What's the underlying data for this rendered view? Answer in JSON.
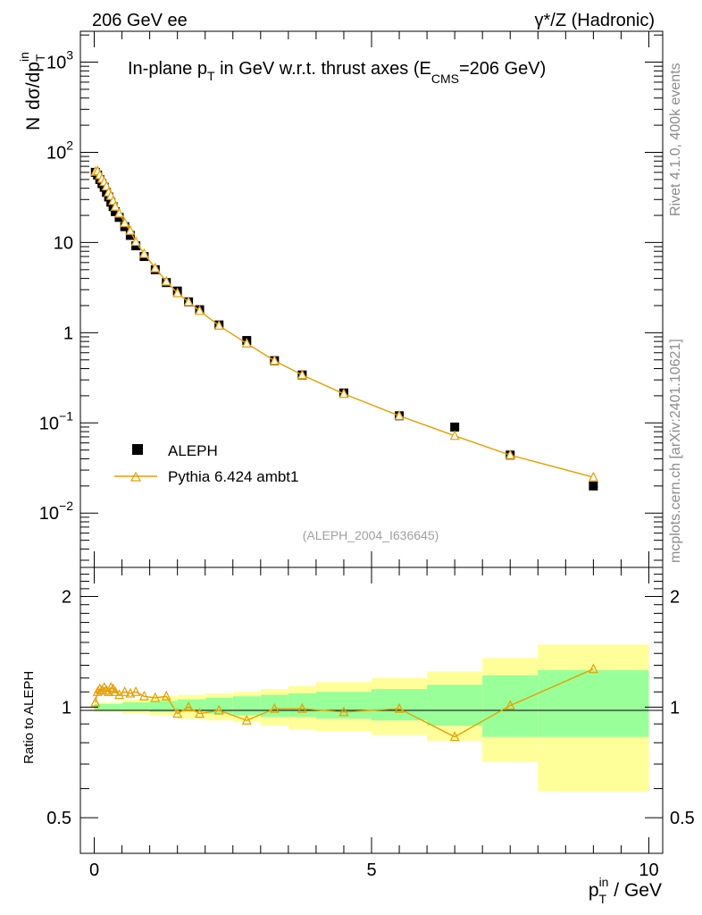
{
  "header": {
    "left": "206 GeV ee",
    "right": "γ*/Z (Hadronic)"
  },
  "side_labels": {
    "rivet": "Rivet 4.1.0,  400k events",
    "mcplots": "mcplots.cern.ch [arXiv:2401.10621]"
  },
  "chart_data": [
    {
      "type": "scatter",
      "panel": "main",
      "title_parts": {
        "pre": "In-plane p",
        "sub1": "T",
        "mid": " in GeV w.r.t. thrust axes (E",
        "sub2": "CMS",
        "post": "=206 GeV)"
      },
      "ylabel": {
        "n": "N",
        "base": "dσ/dp",
        "sub": "T",
        "sup": "in"
      },
      "analysis_id": "(ALEPH_2004_I636645)",
      "yscale": "log",
      "xlim": [
        -0.25,
        10.25
      ],
      "ylim": [
        0.0025,
        2200
      ],
      "y_ticks": [
        {
          "value": 0.01,
          "base": "10",
          "exp": "−2"
        },
        {
          "value": 0.1,
          "base": "10",
          "exp": "−1"
        },
        {
          "value": 1,
          "label": "1"
        },
        {
          "value": 10,
          "label": "10"
        },
        {
          "value": 100,
          "base": "10",
          "exp": "2"
        },
        {
          "value": 1000,
          "base": "10",
          "exp": "3"
        }
      ],
      "x": [
        0.02,
        0.06,
        0.1,
        0.14,
        0.18,
        0.22,
        0.26,
        0.3,
        0.34,
        0.38,
        0.45,
        0.55,
        0.65,
        0.75,
        0.9,
        1.1,
        1.3,
        1.5,
        1.7,
        1.9,
        2.25,
        2.75,
        3.25,
        3.75,
        4.5,
        5.5,
        6.5,
        7.5,
        9.0
      ],
      "series": [
        {
          "name": "ALEPH",
          "marker": "filled-square",
          "color": "#000000",
          "values": [
            60,
            56,
            50,
            45,
            41,
            36,
            32,
            28,
            25,
            22,
            19,
            15,
            12,
            9.2,
            7.0,
            5.0,
            3.6,
            2.9,
            2.2,
            1.8,
            1.22,
            0.82,
            0.49,
            0.34,
            0.215,
            0.12,
            0.09,
            0.044,
            0.02
          ]
        },
        {
          "name": "Pythia 6.424 ambt1",
          "marker": "open-triangle",
          "color": "#e69f00",
          "values": [
            61,
            62,
            56,
            51,
            47,
            42,
            36,
            33,
            29,
            25,
            21,
            16.5,
            13.5,
            10.2,
            7.5,
            5.2,
            3.7,
            2.75,
            2.2,
            1.75,
            1.2,
            0.76,
            0.49,
            0.34,
            0.21,
            0.12,
            0.072,
            0.044,
            0.025
          ]
        }
      ]
    },
    {
      "type": "line",
      "panel": "ratio",
      "ylabel": "Ratio to ALEPH",
      "xlabel": {
        "base": "p",
        "sub": "T",
        "sup": "in",
        "unit": " / GeV"
      },
      "yscale": "log",
      "xlim": [
        -0.25,
        10.25
      ],
      "ylim": [
        0.4,
        2.4
      ],
      "y_ticks": [
        {
          "value": 0.5,
          "label": "0.5"
        },
        {
          "value": 1,
          "label": "1"
        },
        {
          "value": 2,
          "label": "2"
        }
      ],
      "x_ticks": [
        {
          "value": 0,
          "label": "0"
        },
        {
          "value": 5,
          "label": "5"
        },
        {
          "value": 10,
          "label": "10"
        }
      ],
      "band_edges": [
        0,
        0.5,
        1.0,
        1.5,
        2.0,
        2.5,
        3.0,
        3.5,
        4.0,
        5.0,
        6.0,
        7.0,
        8.0,
        10.0
      ],
      "band_yellow_hi": [
        1.03,
        1.05,
        1.07,
        1.08,
        1.09,
        1.1,
        1.12,
        1.14,
        1.17,
        1.2,
        1.25,
        1.36,
        1.48
      ],
      "band_yellow_lo": [
        0.97,
        0.96,
        0.95,
        0.93,
        0.92,
        0.91,
        0.89,
        0.87,
        0.86,
        0.84,
        0.81,
        0.71,
        0.59
      ],
      "band_green_hi": [
        1.02,
        1.03,
        1.04,
        1.05,
        1.06,
        1.07,
        1.08,
        1.09,
        1.1,
        1.12,
        1.15,
        1.22,
        1.26
      ],
      "band_green_lo": [
        0.98,
        0.98,
        0.97,
        0.97,
        0.96,
        0.95,
        0.94,
        0.94,
        0.93,
        0.92,
        0.89,
        0.83,
        0.83
      ],
      "ratio_x": [
        0.02,
        0.06,
        0.1,
        0.14,
        0.18,
        0.22,
        0.26,
        0.3,
        0.34,
        0.38,
        0.45,
        0.55,
        0.65,
        0.75,
        0.9,
        1.1,
        1.3,
        1.5,
        1.7,
        1.9,
        2.25,
        2.75,
        3.25,
        3.75,
        4.5,
        5.5,
        6.5,
        7.5,
        9.0
      ],
      "ratio_values": [
        1.03,
        1.1,
        1.12,
        1.11,
        1.13,
        1.11,
        1.1,
        1.13,
        1.12,
        1.1,
        1.08,
        1.1,
        1.09,
        1.1,
        1.07,
        1.06,
        1.07,
        0.96,
        1.0,
        0.96,
        0.98,
        0.92,
        0.99,
        0.99,
        0.97,
        0.99,
        0.83,
        1.01,
        1.27
      ]
    }
  ]
}
